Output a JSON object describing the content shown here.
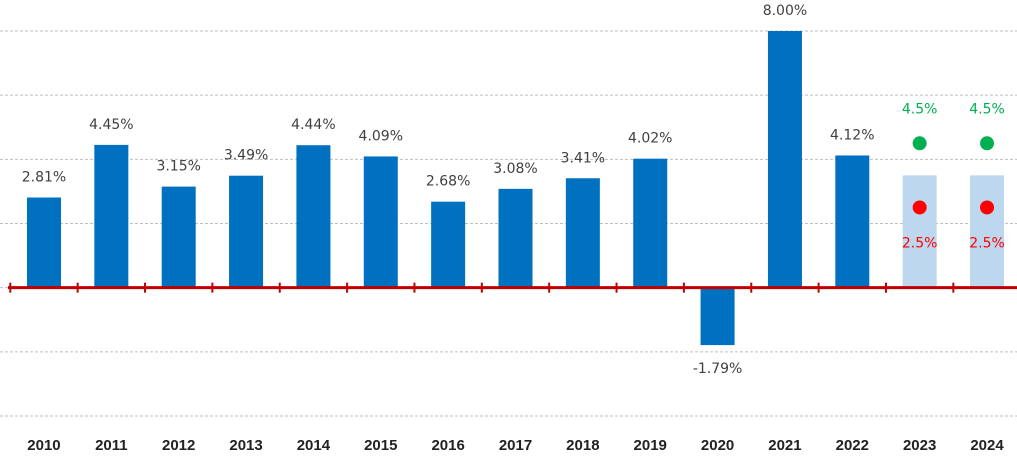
{
  "chart_data": {
    "type": "bar",
    "categories": [
      "2010",
      "2011",
      "2012",
      "2013",
      "2014",
      "2015",
      "2016",
      "2017",
      "2018",
      "2019",
      "2020",
      "2021",
      "2022",
      "2023",
      "2024"
    ],
    "series": [
      {
        "color": "#0070c0",
        "values": [
          2.81,
          4.45,
          3.15,
          3.49,
          4.44,
          4.09,
          2.68,
          3.08,
          3.41,
          4.02,
          -1.79,
          8.0,
          4.12,
          null,
          null
        ],
        "value_labels": [
          "2.81%",
          "4.45%",
          "3.15%",
          "3.49%",
          "4.44%",
          "4.09%",
          "2.68%",
          "3.08%",
          "3.41%",
          "4.02%",
          "-1.79%",
          "8.00%",
          "4.12%",
          null,
          null
        ]
      },
      {
        "color": "#bdd7ee",
        "values": [
          null,
          null,
          null,
          null,
          null,
          null,
          null,
          null,
          null,
          null,
          null,
          null,
          null,
          3.5,
          3.5
        ]
      },
      {
        "color": "#00b050",
        "values": [
          null,
          null,
          null,
          null,
          null,
          null,
          null,
          null,
          null,
          null,
          null,
          null,
          null,
          4.5,
          4.5
        ],
        "value_labels": [
          null,
          null,
          null,
          null,
          null,
          null,
          null,
          null,
          null,
          null,
          null,
          null,
          null,
          "4.5%",
          "4.5%"
        ]
      },
      {
        "color": "#ff0000",
        "values": [
          null,
          null,
          null,
          null,
          null,
          null,
          null,
          null,
          null,
          null,
          null,
          null,
          null,
          2.5,
          2.5
        ],
        "value_labels": [
          null,
          null,
          null,
          null,
          null,
          null,
          null,
          null,
          null,
          null,
          null,
          null,
          null,
          "2.5%",
          "2.5%"
        ]
      }
    ],
    "ylim": [
      -4,
      8
    ],
    "yticks": [
      -4,
      -2,
      0,
      2,
      4,
      6,
      8
    ],
    "grid": true,
    "axis_color": "#c00000"
  }
}
